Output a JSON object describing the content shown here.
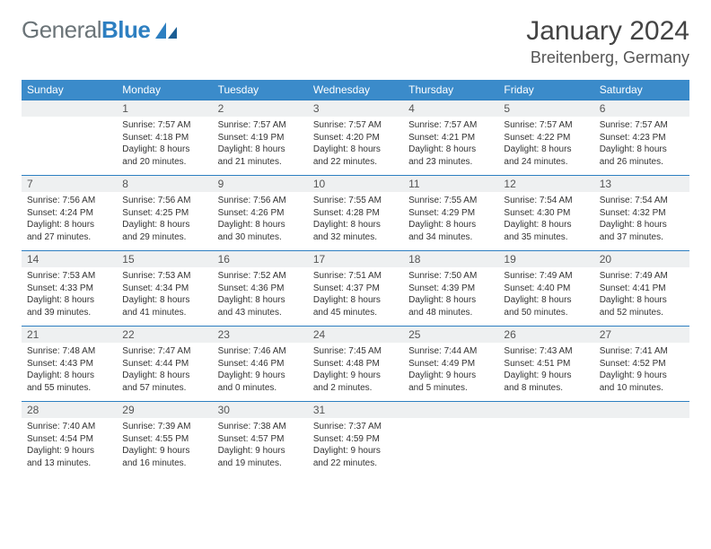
{
  "brand": {
    "part1": "General",
    "part2": "Blue"
  },
  "header": {
    "month": "January 2024",
    "location": "Breitenberg, Germany"
  },
  "colors": {
    "accent": "#3b8bca",
    "daybg": "#eef0f1",
    "rule": "#2d7fc1",
    "text": "#333"
  },
  "dayNames": [
    "Sunday",
    "Monday",
    "Tuesday",
    "Wednesday",
    "Thursday",
    "Friday",
    "Saturday"
  ],
  "weeks": [
    [
      {
        "n": "",
        "sr": "",
        "ss": "",
        "dl": ""
      },
      {
        "n": "1",
        "sr": "7:57 AM",
        "ss": "4:18 PM",
        "dl": "8 hours and 20 minutes."
      },
      {
        "n": "2",
        "sr": "7:57 AM",
        "ss": "4:19 PM",
        "dl": "8 hours and 21 minutes."
      },
      {
        "n": "3",
        "sr": "7:57 AM",
        "ss": "4:20 PM",
        "dl": "8 hours and 22 minutes."
      },
      {
        "n": "4",
        "sr": "7:57 AM",
        "ss": "4:21 PM",
        "dl": "8 hours and 23 minutes."
      },
      {
        "n": "5",
        "sr": "7:57 AM",
        "ss": "4:22 PM",
        "dl": "8 hours and 24 minutes."
      },
      {
        "n": "6",
        "sr": "7:57 AM",
        "ss": "4:23 PM",
        "dl": "8 hours and 26 minutes."
      }
    ],
    [
      {
        "n": "7",
        "sr": "7:56 AM",
        "ss": "4:24 PM",
        "dl": "8 hours and 27 minutes."
      },
      {
        "n": "8",
        "sr": "7:56 AM",
        "ss": "4:25 PM",
        "dl": "8 hours and 29 minutes."
      },
      {
        "n": "9",
        "sr": "7:56 AM",
        "ss": "4:26 PM",
        "dl": "8 hours and 30 minutes."
      },
      {
        "n": "10",
        "sr": "7:55 AM",
        "ss": "4:28 PM",
        "dl": "8 hours and 32 minutes."
      },
      {
        "n": "11",
        "sr": "7:55 AM",
        "ss": "4:29 PM",
        "dl": "8 hours and 34 minutes."
      },
      {
        "n": "12",
        "sr": "7:54 AM",
        "ss": "4:30 PM",
        "dl": "8 hours and 35 minutes."
      },
      {
        "n": "13",
        "sr": "7:54 AM",
        "ss": "4:32 PM",
        "dl": "8 hours and 37 minutes."
      }
    ],
    [
      {
        "n": "14",
        "sr": "7:53 AM",
        "ss": "4:33 PM",
        "dl": "8 hours and 39 minutes."
      },
      {
        "n": "15",
        "sr": "7:53 AM",
        "ss": "4:34 PM",
        "dl": "8 hours and 41 minutes."
      },
      {
        "n": "16",
        "sr": "7:52 AM",
        "ss": "4:36 PM",
        "dl": "8 hours and 43 minutes."
      },
      {
        "n": "17",
        "sr": "7:51 AM",
        "ss": "4:37 PM",
        "dl": "8 hours and 45 minutes."
      },
      {
        "n": "18",
        "sr": "7:50 AM",
        "ss": "4:39 PM",
        "dl": "8 hours and 48 minutes."
      },
      {
        "n": "19",
        "sr": "7:49 AM",
        "ss": "4:40 PM",
        "dl": "8 hours and 50 minutes."
      },
      {
        "n": "20",
        "sr": "7:49 AM",
        "ss": "4:41 PM",
        "dl": "8 hours and 52 minutes."
      }
    ],
    [
      {
        "n": "21",
        "sr": "7:48 AM",
        "ss": "4:43 PM",
        "dl": "8 hours and 55 minutes."
      },
      {
        "n": "22",
        "sr": "7:47 AM",
        "ss": "4:44 PM",
        "dl": "8 hours and 57 minutes."
      },
      {
        "n": "23",
        "sr": "7:46 AM",
        "ss": "4:46 PM",
        "dl": "9 hours and 0 minutes."
      },
      {
        "n": "24",
        "sr": "7:45 AM",
        "ss": "4:48 PM",
        "dl": "9 hours and 2 minutes."
      },
      {
        "n": "25",
        "sr": "7:44 AM",
        "ss": "4:49 PM",
        "dl": "9 hours and 5 minutes."
      },
      {
        "n": "26",
        "sr": "7:43 AM",
        "ss": "4:51 PM",
        "dl": "9 hours and 8 minutes."
      },
      {
        "n": "27",
        "sr": "7:41 AM",
        "ss": "4:52 PM",
        "dl": "9 hours and 10 minutes."
      }
    ],
    [
      {
        "n": "28",
        "sr": "7:40 AM",
        "ss": "4:54 PM",
        "dl": "9 hours and 13 minutes."
      },
      {
        "n": "29",
        "sr": "7:39 AM",
        "ss": "4:55 PM",
        "dl": "9 hours and 16 minutes."
      },
      {
        "n": "30",
        "sr": "7:38 AM",
        "ss": "4:57 PM",
        "dl": "9 hours and 19 minutes."
      },
      {
        "n": "31",
        "sr": "7:37 AM",
        "ss": "4:59 PM",
        "dl": "9 hours and 22 minutes."
      },
      {
        "n": "",
        "sr": "",
        "ss": "",
        "dl": ""
      },
      {
        "n": "",
        "sr": "",
        "ss": "",
        "dl": ""
      },
      {
        "n": "",
        "sr": "",
        "ss": "",
        "dl": ""
      }
    ]
  ],
  "labels": {
    "sunrise": "Sunrise: ",
    "sunset": "Sunset: ",
    "daylight": "Daylight: "
  }
}
